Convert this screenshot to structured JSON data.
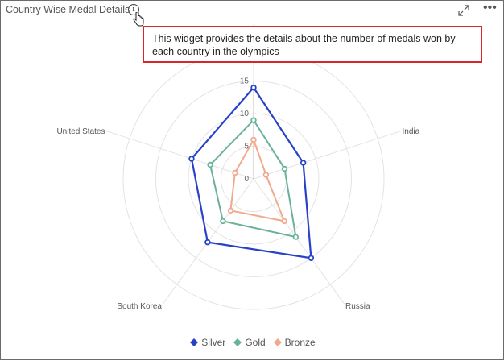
{
  "widget": {
    "title": "Country Wise Medal Details",
    "info_glyph": "i",
    "more_glyph": "•••",
    "tooltip": "This widget provides the details about the number of medals won by each country in the olympics"
  },
  "icons": {
    "info": "info-icon",
    "cursor": "hand-pointer-icon",
    "expand": "expand-icon",
    "more": "more-options-icon"
  },
  "chart_data": {
    "type": "radar",
    "title": "Country Wise Medal Details",
    "categories": [
      "",
      "India",
      "Russia",
      "South Korea",
      "United States"
    ],
    "rticks": [
      "0",
      "5",
      "10",
      "15"
    ],
    "rmax": 20,
    "series": [
      {
        "name": "Silver",
        "color": "#2741c7",
        "values": [
          14,
          8,
          15,
          12,
          10
        ]
      },
      {
        "name": "Gold",
        "color": "#68b397",
        "values": [
          9,
          5,
          11,
          8,
          7
        ]
      },
      {
        "name": "Bronze",
        "color": "#f1a98e",
        "values": [
          6,
          2,
          8,
          6,
          3
        ]
      }
    ],
    "legend_position": "bottom"
  }
}
